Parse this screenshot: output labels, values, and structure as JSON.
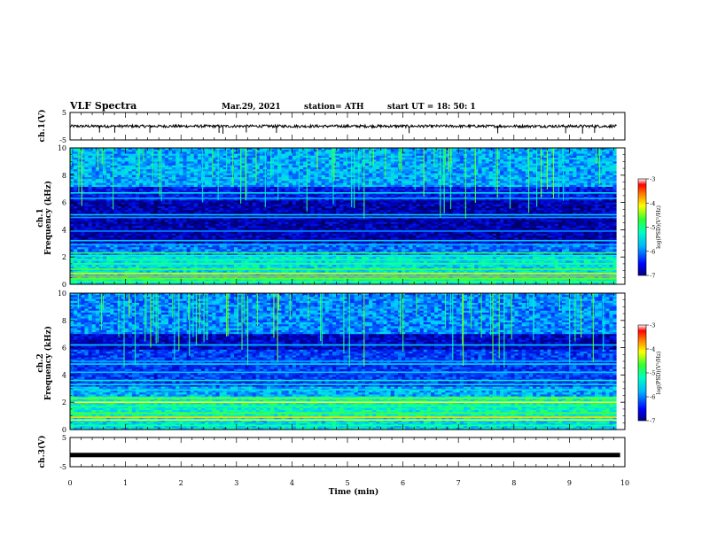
{
  "header": {
    "title": "VLF  Spectra",
    "date": "Mar.29, 2021",
    "station": "station= ATH",
    "start": "start  UT  =   18: 50: 1"
  },
  "chart_data": [
    {
      "type": "line",
      "name": "ch1-waveform",
      "ylabel": "ch.1(V)",
      "ylim": [
        -5,
        5
      ],
      "yticks": [
        "5",
        "-5"
      ],
      "xlim": [
        0,
        10
      ],
      "baseline_value": 0,
      "noise_amplitude": 0.5
    },
    {
      "type": "heatmap",
      "name": "ch1-spectrogram",
      "ylabel": "ch.1\nFrequency  (kHz)",
      "ylabel_line1": "ch.1",
      "ylabel_line2": "Frequency  (kHz)",
      "ylim": [
        0,
        10
      ],
      "yticks": [
        "10",
        "8",
        "6",
        "4",
        "2",
        "0"
      ],
      "xlim": [
        0,
        10
      ],
      "data_end_min": 9.85,
      "colorbar": {
        "label": "log(PSD)(V²/Hz)",
        "range": [
          -7,
          -3
        ],
        "ticks": [
          "-3",
          "-4",
          "-5",
          "-6",
          "-7"
        ]
      }
    },
    {
      "type": "heatmap",
      "name": "ch2-spectrogram",
      "ylabel": "ch.2\nFrequency  (kHz)",
      "ylabel_line1": "ch.2",
      "ylabel_line2": "Frequency  (kHz)",
      "ylim": [
        0,
        10
      ],
      "yticks": [
        "10",
        "8",
        "6",
        "4",
        "2",
        "0"
      ],
      "xlim": [
        0,
        10
      ],
      "data_end_min": 9.85,
      "colorbar": {
        "label": "log(PSD)(V²/Hz)",
        "range": [
          -7,
          -3
        ],
        "ticks": [
          "-3",
          "-4",
          "-5",
          "-6",
          "-7"
        ]
      }
    },
    {
      "type": "line",
      "name": "ch3-waveform",
      "ylabel": "ch.3(V)",
      "ylim": [
        -5,
        5
      ],
      "yticks": [
        "5",
        "-5"
      ],
      "xlim": [
        0,
        10
      ],
      "baseline_value": -1,
      "noise_amplitude": 0
    }
  ],
  "xaxis": {
    "label": "Time  (min)",
    "ticks": [
      "0",
      "1",
      "2",
      "3",
      "4",
      "5",
      "6",
      "7",
      "8",
      "9",
      "10"
    ]
  },
  "colors": {
    "trace": "#000000",
    "spectrogram_low": "#000066",
    "spectrogram_high": "#ff0000"
  }
}
